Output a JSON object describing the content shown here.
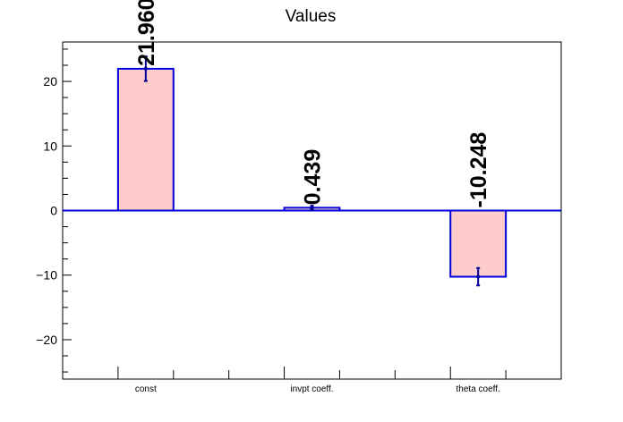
{
  "chart_data": {
    "type": "bar",
    "title": "Values",
    "categories": [
      "const",
      "invpt coeff.",
      "theta coeff."
    ],
    "values": [
      21.96,
      0.439,
      -10.248
    ],
    "value_labels": [
      "21.960",
      "0.439",
      "-10.248"
    ],
    "errors": [
      1.9,
      0.3,
      1.35
    ],
    "ylim": [
      -26.1,
      26.1
    ],
    "yticks": [
      -20,
      -10,
      0,
      10,
      20
    ],
    "ytick_labels": [
      "−20",
      "−10",
      "0",
      "10",
      "20"
    ],
    "xlabel": "",
    "ylabel": "",
    "grid": false,
    "colors": {
      "bar_fill": "#ffcccc",
      "bar_edge": "#0000dd",
      "zero_line": "#0000dd",
      "error_bar": "#000099",
      "axis": "#000000"
    }
  }
}
